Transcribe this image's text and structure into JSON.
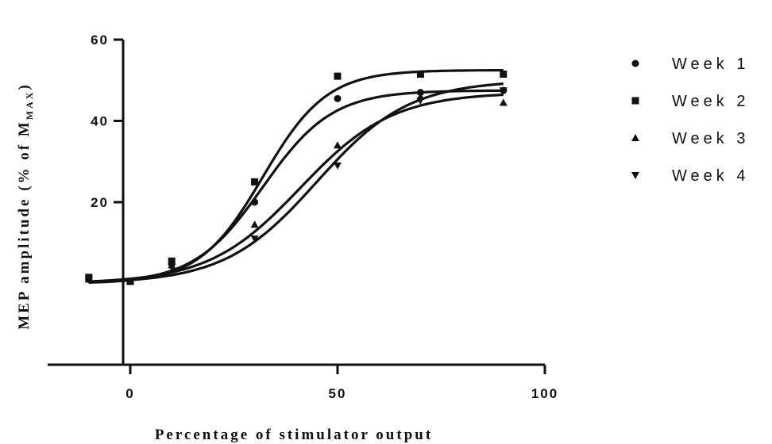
{
  "chart_data": {
    "type": "scatter",
    "title": "",
    "xlabel": "Percentage of stimulator output",
    "ylabel": "MEP amplitude (% of M",
    "ylabel_subscript": "MAX",
    "ylabel_close": ")",
    "xlim": [
      -20,
      100
    ],
    "ylim": [
      -20,
      60
    ],
    "xticks": [
      0,
      50,
      100
    ],
    "yticks": [
      20,
      40,
      60
    ],
    "xtick_labels": [
      "0",
      "50",
      "100"
    ],
    "ytick_labels": [
      "20",
      "40",
      "60"
    ],
    "grid": false,
    "legend_position": "right",
    "series": [
      {
        "name": "Week 1",
        "marker": "circle",
        "x": [
          -10,
          0,
          10,
          30,
          50,
          70,
          90
        ],
        "y": [
          1,
          0.5,
          5,
          20,
          45.5,
          47,
          47.5
        ],
        "fit": {
          "bottom": 0,
          "top": 47.5,
          "x50": 32,
          "hill": 0.12
        }
      },
      {
        "name": "Week 2",
        "marker": "square",
        "x": [
          -10,
          0,
          10,
          30,
          50,
          70,
          90
        ],
        "y": [
          1.5,
          0.5,
          5.5,
          25,
          51,
          51.5,
          51.5
        ],
        "fit": {
          "bottom": 0,
          "top": 52.5,
          "x50": 32,
          "hill": 0.13
        }
      },
      {
        "name": "Week 3",
        "marker": "triangle-up",
        "x": [
          -10,
          0,
          10,
          30,
          50,
          70,
          90
        ],
        "y": [
          1,
          0.5,
          4.5,
          14.5,
          34,
          46,
          44.5
        ],
        "fit": {
          "bottom": 0,
          "top": 47,
          "x50": 41,
          "hill": 0.09
        }
      },
      {
        "name": "Week 4",
        "marker": "triangle-down",
        "x": [
          -10,
          0,
          10,
          30,
          50,
          70,
          90
        ],
        "y": [
          1,
          0.5,
          4,
          11,
          29,
          45,
          47.5
        ],
        "fit": {
          "bottom": 0,
          "top": 50,
          "x50": 45,
          "hill": 0.09
        }
      }
    ]
  }
}
